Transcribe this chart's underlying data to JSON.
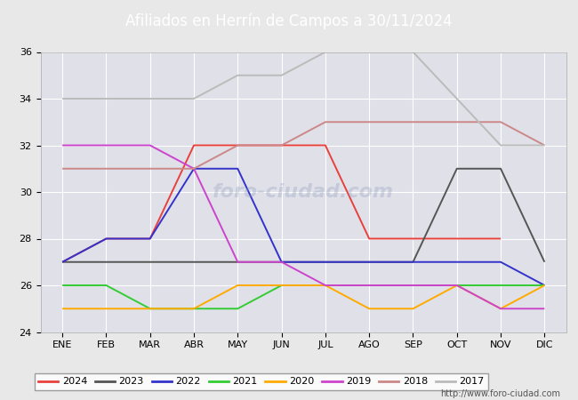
{
  "title": "Afiliados en Herrín de Campos a 30/11/2024",
  "months": [
    "ENE",
    "FEB",
    "MAR",
    "ABR",
    "MAY",
    "JUN",
    "JUL",
    "AGO",
    "SEP",
    "OCT",
    "NOV",
    "DIC"
  ],
  "ylim": [
    24,
    36
  ],
  "yticks": [
    24,
    26,
    28,
    30,
    32,
    34,
    36
  ],
  "series": {
    "2024": {
      "color": "#e8413c",
      "data": [
        27,
        28,
        28,
        32,
        32,
        32,
        32,
        28,
        28,
        28,
        28,
        null
      ]
    },
    "2023": {
      "color": "#555555",
      "data": [
        27,
        27,
        27,
        27,
        27,
        27,
        27,
        27,
        27,
        31,
        31,
        27
      ]
    },
    "2022": {
      "color": "#3333cc",
      "data": [
        27,
        28,
        28,
        31,
        31,
        27,
        27,
        27,
        27,
        27,
        27,
        26
      ]
    },
    "2021": {
      "color": "#33cc33",
      "data": [
        26,
        26,
        25,
        25,
        25,
        26,
        26,
        26,
        26,
        26,
        26,
        26
      ]
    },
    "2020": {
      "color": "#ffaa00",
      "data": [
        25,
        25,
        25,
        25,
        26,
        26,
        26,
        25,
        25,
        26,
        25,
        26
      ]
    },
    "2019": {
      "color": "#cc44cc",
      "data": [
        32,
        32,
        32,
        31,
        27,
        27,
        26,
        26,
        26,
        26,
        25,
        25
      ]
    },
    "2018": {
      "color": "#cc8888",
      "data": [
        31,
        31,
        31,
        31,
        32,
        32,
        33,
        33,
        33,
        33,
        33,
        32
      ]
    },
    "2017": {
      "color": "#bbbbbb",
      "data": [
        34,
        34,
        34,
        34,
        35,
        35,
        36,
        36,
        36,
        34,
        32,
        32
      ]
    }
  },
  "watermark": "foro-ciudad.com",
  "url": "http://www.foro-ciudad.com",
  "fig_bg_color": "#e8e8e8",
  "plot_bg_color": "#e0e0e8",
  "title_bg": "#5599cc",
  "grid_color": "#ffffff",
  "title_fontsize": 12,
  "tick_fontsize": 8,
  "legend_fontsize": 8
}
